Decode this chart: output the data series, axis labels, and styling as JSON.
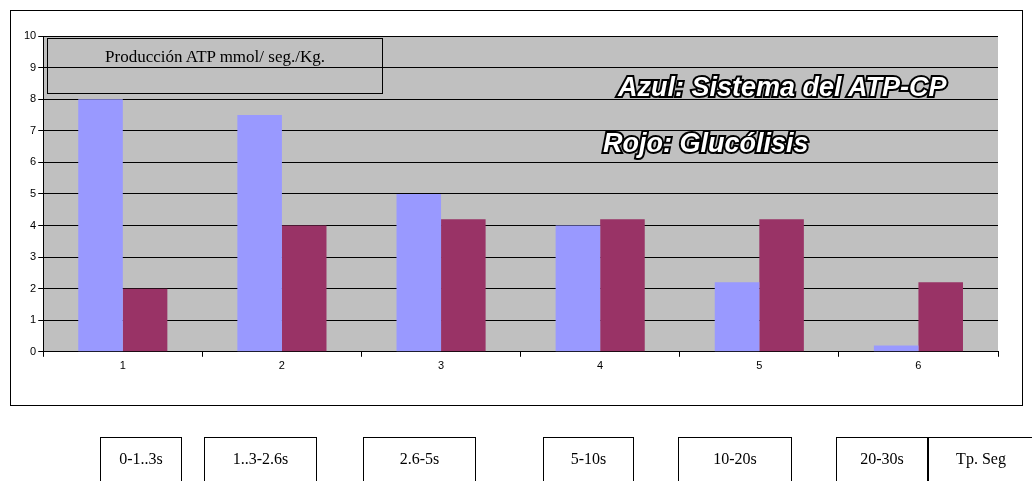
{
  "chart_data": {
    "type": "bar",
    "title": "Producción ATP mmol/ seg./Kg.",
    "categories": [
      "1",
      "2",
      "3",
      "4",
      "5",
      "6"
    ],
    "series": [
      {
        "color": "#9999ff",
        "values": [
          8,
          7.5,
          5,
          4,
          2.2,
          0.2
        ]
      },
      {
        "color": "#993366",
        "values": [
          2,
          4,
          4.2,
          4.2,
          4.2,
          2.2
        ]
      }
    ],
    "ylim": [
      0,
      10
    ],
    "yticks": [
      0,
      1,
      2,
      3,
      4,
      5,
      6,
      7,
      8,
      9,
      10
    ],
    "grid": "y",
    "legend": false,
    "annotations": [
      "Azul: Sistema del ATP-CP",
      "Rojo: Glucólisis",
      "0-1..3s",
      "1..3-2.6s",
      "2.6-5s",
      "5-10s",
      "10-20s",
      "20-30s",
      "Tp. Seg"
    ]
  }
}
